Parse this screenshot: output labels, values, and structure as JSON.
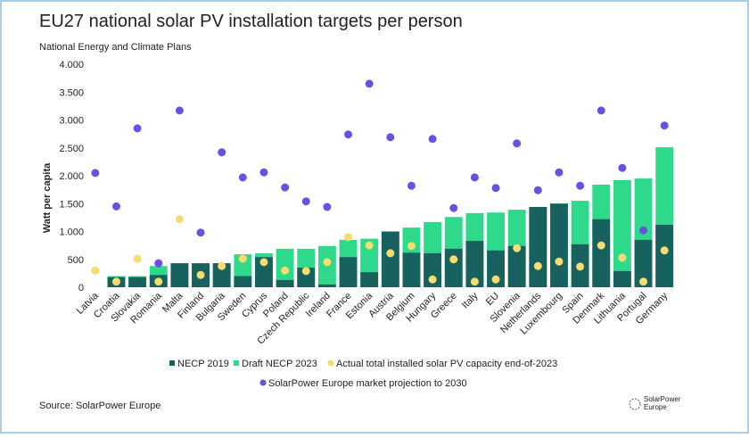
{
  "chart_data": {
    "type": "bar",
    "title": "EU27 national solar PV installation targets per person",
    "subtitle": "National Energy and Climate Plans",
    "y_label": "Watt per capita",
    "source": "Source: SolarPower Europe",
    "logo": [
      "SolarPower",
      "Europe"
    ],
    "categories": [
      "Latvia",
      "Croatia",
      "Slovakia",
      "Romania",
      "Malta",
      "Finland",
      "Bulgaria",
      "Sweden",
      "Cyprus",
      "Poland",
      "Czech Republic",
      "Ireland",
      "France",
      "Estonia",
      "Austria",
      "Belgium",
      "Hungary",
      "Greece",
      "Italy",
      "EU",
      "Slovenia",
      "Netherlands",
      "Luxembourg",
      "Spain",
      "Denmark",
      "Lithuania",
      "Portugal",
      "Germany"
    ],
    "ylim": [
      0,
      4000
    ],
    "yticks": [
      0,
      500,
      {
        "value": 1000,
        "label": "1.000"
      },
      {
        "value": 1500,
        "label": "1.500"
      },
      {
        "value": 2000,
        "label": "2.000"
      },
      {
        "value": 2500,
        "label": "2.500"
      },
      {
        "value": 3000,
        "label": "3.000"
      },
      {
        "value": 3500,
        "label": "3.500"
      },
      {
        "value": 4000,
        "label": "4.000"
      }
    ],
    "series": [
      {
        "name": "Draft NECP 2023",
        "type": "bar",
        "color": "#2fd98c",
        "values": [
          null,
          200,
          200,
          380,
          430,
          430,
          430,
          590,
          610,
          690,
          690,
          740,
          850,
          870,
          1000,
          1070,
          1170,
          1260,
          1330,
          1340,
          1390,
          1440,
          1500,
          1550,
          1840,
          1920,
          1950,
          2510
        ]
      },
      {
        "name": "NECP 2019",
        "type": "bar",
        "color": "#17625e",
        "values": [
          null,
          180,
          180,
          220,
          430,
          430,
          430,
          200,
          540,
          130,
          350,
          50,
          540,
          270,
          1000,
          620,
          610,
          690,
          830,
          660,
          740,
          1440,
          1500,
          770,
          1220,
          290,
          850,
          1120
        ]
      },
      {
        "name": "Actual total installed solar PV capacity end-of-2023",
        "type": "scatter",
        "color": "#f7dc6f",
        "values": [
          300,
          100,
          510,
          100,
          1220,
          220,
          380,
          510,
          450,
          300,
          290,
          450,
          900,
          750,
          610,
          740,
          140,
          500,
          100,
          140,
          700,
          380,
          460,
          370,
          750,
          530,
          100,
          660
        ]
      },
      {
        "name": "SolarPower Europe market projection to 2030",
        "type": "scatter",
        "color": "#6b4fe3",
        "values": [
          2050,
          1450,
          2850,
          430,
          3170,
          980,
          2420,
          1970,
          2060,
          1790,
          1540,
          1440,
          2740,
          3650,
          2690,
          1820,
          2660,
          1420,
          1970,
          1780,
          2580,
          1740,
          2060,
          1820,
          3170,
          2140,
          1020,
          2900
        ]
      }
    ],
    "legend_order": [
      1,
      0,
      2,
      3
    ]
  }
}
